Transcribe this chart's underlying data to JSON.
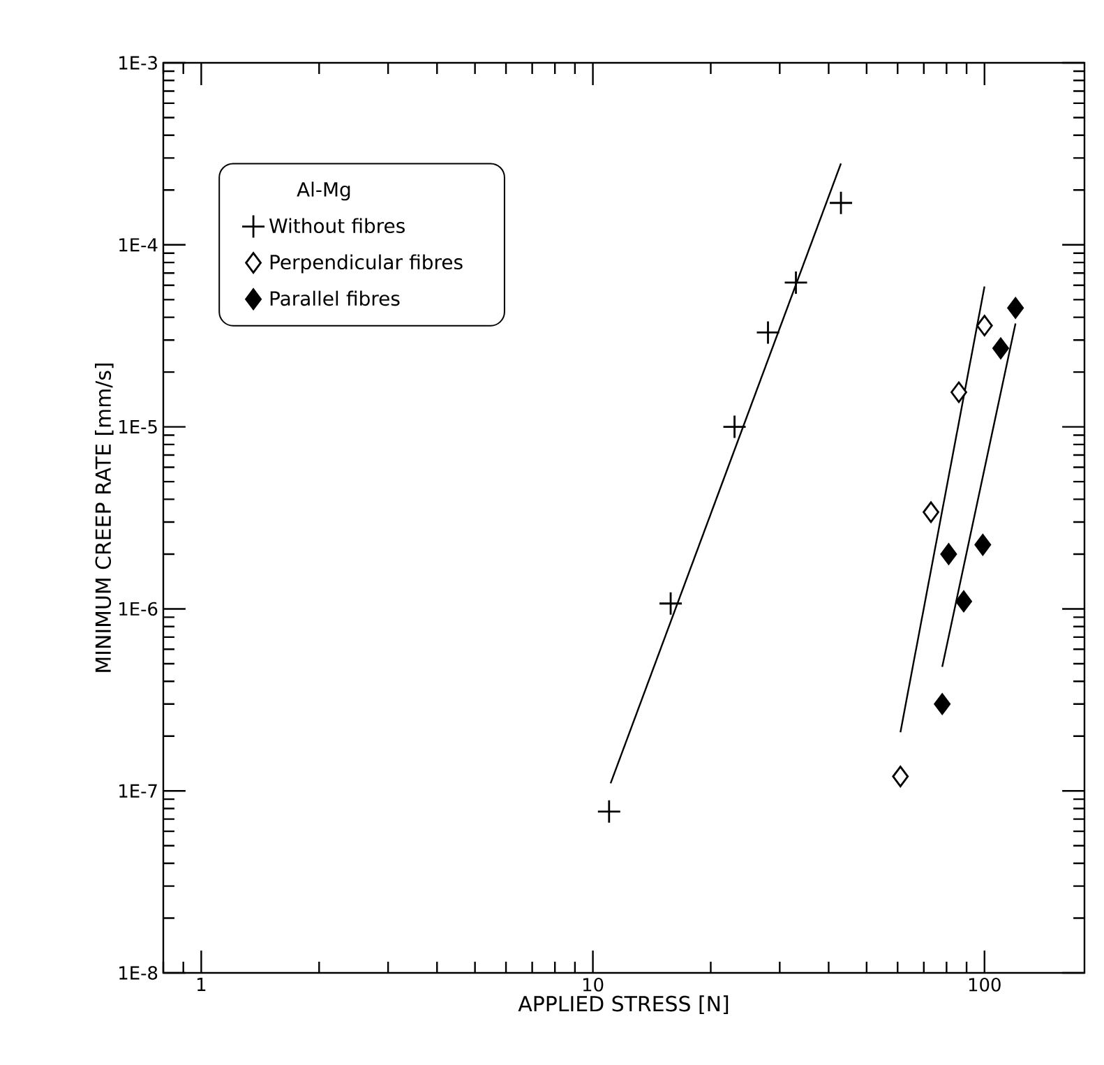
{
  "chart_data": {
    "type": "scatter",
    "xlabel": "APPLIED STRESS [N]",
    "ylabel": "MINIMUM CREEP RATE [mm/s]",
    "legend_title": "Al-Mg",
    "log": "xy",
    "xlim": [
      0.8,
      180
    ],
    "ylim": [
      1e-08,
      0.001
    ],
    "xticks": [
      1,
      10,
      100
    ],
    "yticks": [
      {
        "value": 1e-08,
        "label": "1E-8"
      },
      {
        "value": 1e-07,
        "label": "1E-7"
      },
      {
        "value": 1e-06,
        "label": "1E-6"
      },
      {
        "value": 1e-05,
        "label": "1E-5"
      },
      {
        "value": 0.0001,
        "label": "1E-4"
      },
      {
        "value": 0.001,
        "label": "1E-3"
      }
    ],
    "grid": false,
    "legend": "top left",
    "series": [
      {
        "name": "Without fibres",
        "marker": "cross",
        "color": "#000000",
        "x": [
          11,
          15.8,
          23,
          28,
          33,
          43
        ],
        "values": [
          7.7e-08,
          1.07e-06,
          1e-05,
          3.3e-05,
          6.2e-05,
          0.00017
        ]
      },
      {
        "name": "Perpendicular fibres",
        "marker": "diamond",
        "color": "#ffffff",
        "x": [
          61,
          73,
          86,
          100
        ],
        "values": [
          1.2e-07,
          3.4e-06,
          1.55e-05,
          3.6e-05
        ]
      },
      {
        "name": "Parallel fibres",
        "marker": "diamond",
        "color": "#000000",
        "x": [
          78,
          81,
          88.5,
          99,
          110,
          120
        ],
        "values": [
          3e-07,
          2e-06,
          1.1e-06,
          2.25e-06,
          2.7e-05,
          4.5e-05
        ]
      },
      {
        "type": "line",
        "marker": "none",
        "color": "#000000",
        "x": [
          11.1,
          43
        ],
        "values": [
          1.1e-07,
          0.00028
        ]
      },
      {
        "type": "line",
        "marker": "none",
        "color": "#000000",
        "x": [
          61,
          100
        ],
        "values": [
          2.1e-07,
          5.9e-05
        ]
      },
      {
        "type": "line",
        "marker": "none",
        "color": "#000000",
        "x": [
          78,
          120
        ],
        "values": [
          4.8e-07,
          3.7e-05
        ]
      }
    ]
  }
}
